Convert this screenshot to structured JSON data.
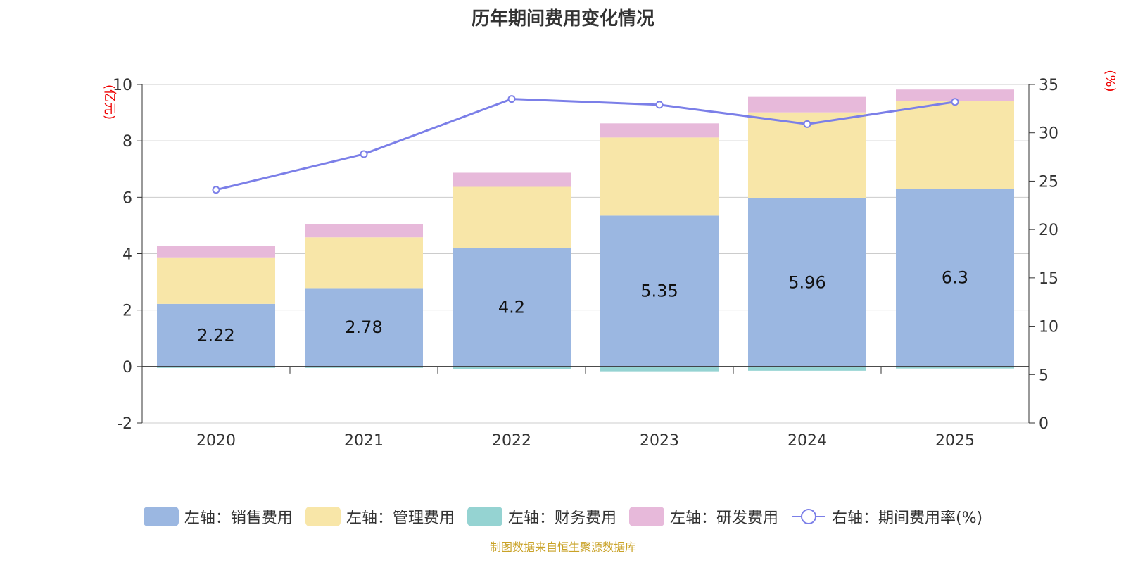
{
  "chart_data": {
    "type": "bar",
    "title": "历年期间费用变化情况",
    "source": "制图数据来自恒生聚源数据库",
    "categories": [
      "2020",
      "2021",
      "2022",
      "2023",
      "2024",
      "2025"
    ],
    "left_axis": {
      "label": "(亿元)",
      "range": [
        -2,
        10
      ],
      "ticks": [
        "-2",
        "0",
        "2",
        "4",
        "6",
        "8",
        "10"
      ]
    },
    "right_axis": {
      "label": "(%)",
      "range": [
        0,
        35
      ],
      "ticks": [
        "0",
        "5",
        "10",
        "15",
        "20",
        "25",
        "30",
        "35"
      ]
    },
    "series": [
      {
        "name": "左轴：销售费用",
        "type": "bar",
        "axis": "left",
        "color": "#9bb7e1",
        "values": [
          2.22,
          2.78,
          4.2,
          5.35,
          5.96,
          6.3
        ],
        "labels": [
          "2.22",
          "2.78",
          "4.2",
          "5.35",
          "5.96",
          "6.3"
        ]
      },
      {
        "name": "左轴：管理费用",
        "type": "bar",
        "axis": "left",
        "color": "#f8e6a8",
        "values": [
          1.65,
          1.8,
          2.17,
          2.77,
          3.05,
          3.12
        ]
      },
      {
        "name": "左轴：财务费用",
        "type": "bar",
        "axis": "left",
        "color": "#95d3d2",
        "values": [
          -0.05,
          -0.05,
          -0.1,
          -0.17,
          -0.15,
          -0.07
        ]
      },
      {
        "name": "左轴：研发费用",
        "type": "bar",
        "axis": "left",
        "color": "#e7b9da",
        "values": [
          0.4,
          0.48,
          0.5,
          0.5,
          0.55,
          0.4
        ]
      },
      {
        "name": "右轴：期间费用率(%)",
        "type": "line",
        "axis": "right",
        "color": "#7b7fe8",
        "values": [
          24.1,
          27.8,
          33.5,
          32.9,
          30.9,
          33.2
        ]
      }
    ]
  }
}
